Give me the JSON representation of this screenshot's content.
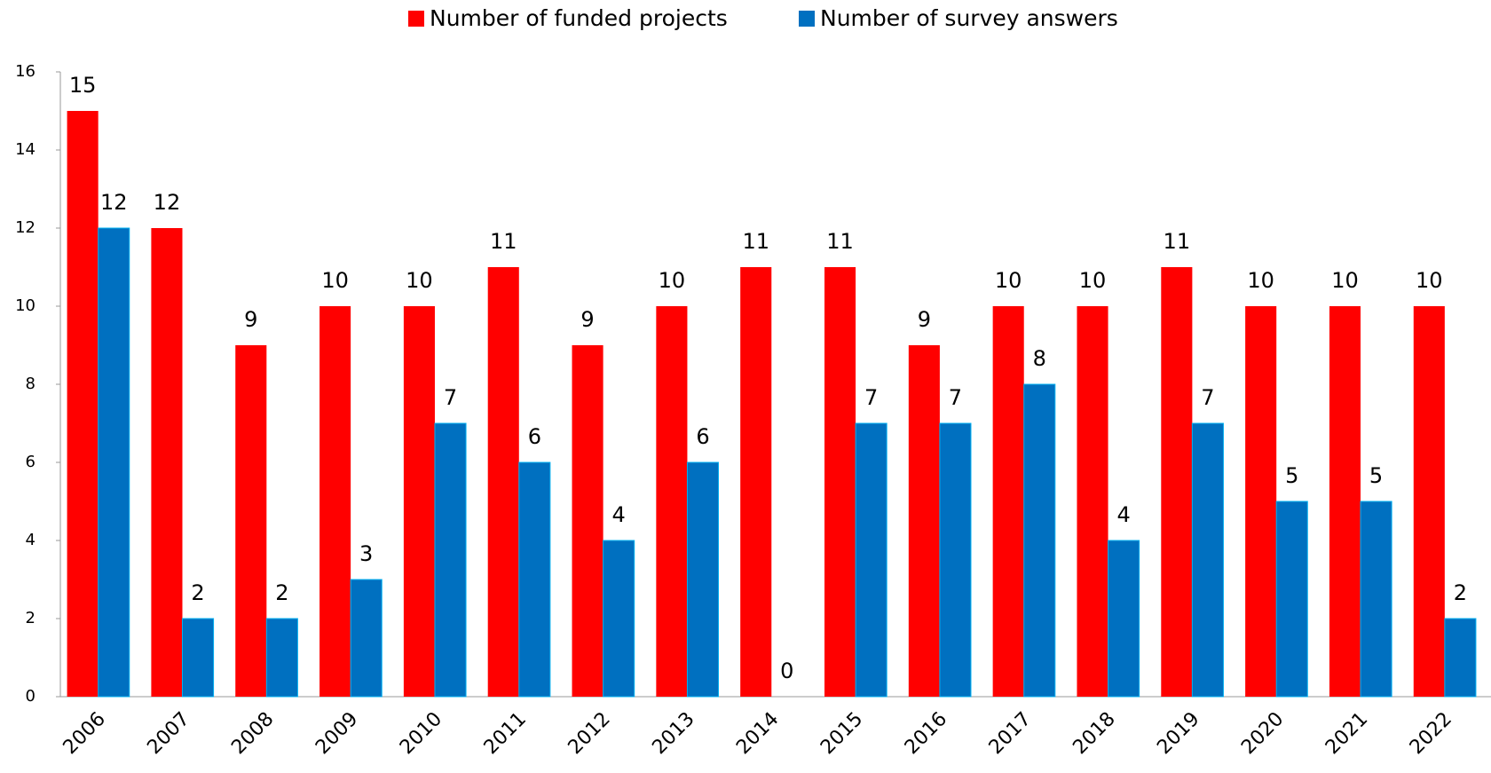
{
  "chart_data": {
    "type": "bar",
    "categories": [
      "2006",
      "2007",
      "2008",
      "2009",
      "2010",
      "2011",
      "2012",
      "2013",
      "2014",
      "2015",
      "2016",
      "2017",
      "2018",
      "2019",
      "2020",
      "2021",
      "2022"
    ],
    "series": [
      {
        "name": "Number of funded projects",
        "color": "#ff0000",
        "values": [
          15,
          12,
          9,
          10,
          10,
          11,
          9,
          10,
          11,
          11,
          9,
          10,
          10,
          11,
          10,
          10,
          10
        ]
      },
      {
        "name": "Number of survey answers",
        "color": "#0070c0",
        "values": [
          12,
          2,
          2,
          3,
          7,
          6,
          4,
          6,
          0,
          7,
          7,
          8,
          4,
          7,
          5,
          5,
          2
        ]
      }
    ],
    "ylim": [
      0,
      16
    ],
    "yticks": [
      0,
      2,
      4,
      6,
      8,
      10,
      12,
      14,
      16
    ],
    "grid": false,
    "legend": "top"
  }
}
